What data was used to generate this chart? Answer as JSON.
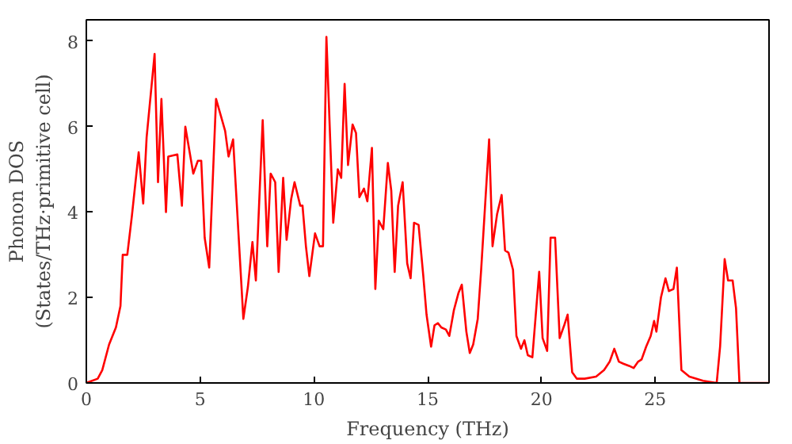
{
  "chart_data": {
    "type": "line",
    "xlabel": "Frequency (THz)",
    "ylabel": "Phonon DOS\n(States/THz·primitive cell)",
    "xlim": [
      0,
      30
    ],
    "ylim": [
      0,
      8.5
    ],
    "xticks": [
      0,
      5,
      10,
      15,
      20,
      25
    ],
    "yticks": [
      0,
      2,
      4,
      6,
      8
    ],
    "marker": "none",
    "line_style": "solid",
    "series": [
      {
        "color": "#ff0000",
        "x": [
          0,
          0.5,
          0.7,
          1.0,
          1.3,
          1.5,
          1.6,
          1.8,
          2.0,
          2.3,
          2.5,
          2.65,
          3.0,
          3.15,
          3.3,
          3.5,
          3.6,
          4.0,
          4.2,
          4.35,
          4.7,
          4.9,
          5.05,
          5.2,
          5.4,
          5.7,
          6.1,
          6.25,
          6.45,
          6.75,
          6.9,
          7.1,
          7.3,
          7.45,
          7.75,
          7.95,
          8.1,
          8.3,
          8.45,
          8.65,
          8.8,
          9.0,
          9.15,
          9.4,
          9.5,
          9.65,
          9.8,
          10.05,
          10.25,
          10.4,
          10.55,
          10.85,
          11.05,
          11.2,
          11.35,
          11.5,
          11.7,
          11.85,
          12.0,
          12.2,
          12.35,
          12.55,
          12.7,
          12.85,
          13.05,
          13.25,
          13.4,
          13.55,
          13.7,
          13.9,
          14.1,
          14.25,
          14.4,
          14.6,
          14.8,
          14.95,
          15.15,
          15.3,
          15.45,
          15.6,
          15.8,
          15.95,
          16.15,
          16.35,
          16.5,
          16.7,
          16.85,
          17.0,
          17.2,
          17.35,
          17.7,
          17.85,
          18.05,
          18.25,
          18.4,
          18.55,
          18.75,
          18.9,
          19.1,
          19.25,
          19.4,
          19.6,
          19.75,
          19.9,
          20.05,
          20.25,
          20.4,
          20.6,
          20.8,
          21.0,
          21.15,
          21.35,
          21.55,
          21.9,
          22.4,
          22.75,
          23.0,
          23.2,
          23.4,
          23.6,
          23.85,
          24.05,
          24.25,
          24.4,
          24.6,
          24.8,
          24.95,
          25.05,
          25.25,
          25.45,
          25.6,
          25.8,
          25.95,
          26.15,
          26.5,
          27.1,
          27.7,
          27.85,
          28.05,
          28.2,
          28.4,
          28.55,
          28.7,
          30
        ],
        "values": [
          0,
          0.1,
          0.3,
          0.9,
          1.3,
          1.8,
          3.0,
          3.0,
          3.9,
          5.4,
          4.2,
          5.75,
          7.7,
          4.7,
          6.65,
          4.0,
          5.3,
          5.35,
          4.15,
          6.0,
          4.9,
          5.2,
          5.2,
          3.4,
          2.7,
          6.65,
          5.9,
          5.3,
          5.7,
          2.9,
          1.5,
          2.25,
          3.3,
          2.4,
          6.15,
          3.2,
          4.9,
          4.7,
          2.6,
          4.8,
          3.35,
          4.3,
          4.7,
          4.15,
          4.15,
          3.2,
          2.5,
          3.5,
          3.2,
          3.2,
          8.1,
          3.75,
          5.0,
          4.8,
          7.0,
          5.1,
          6.05,
          5.85,
          4.35,
          4.55,
          4.25,
          5.5,
          2.2,
          3.8,
          3.6,
          5.15,
          4.5,
          2.6,
          4.15,
          4.7,
          2.8,
          2.45,
          3.75,
          3.7,
          2.55,
          1.6,
          0.85,
          1.35,
          1.4,
          1.3,
          1.25,
          1.1,
          1.7,
          2.1,
          2.3,
          1.2,
          0.7,
          0.9,
          1.5,
          2.65,
          5.7,
          3.2,
          3.95,
          4.4,
          3.1,
          3.05,
          2.65,
          1.1,
          0.8,
          1.0,
          0.65,
          0.6,
          1.6,
          2.6,
          1.05,
          0.75,
          3.4,
          3.4,
          1.05,
          1.35,
          1.6,
          0.25,
          0.1,
          0.1,
          0.15,
          0.3,
          0.5,
          0.8,
          0.5,
          0.45,
          0.4,
          0.35,
          0.5,
          0.55,
          0.85,
          1.1,
          1.45,
          1.2,
          2.0,
          2.45,
          2.15,
          2.2,
          2.7,
          0.3,
          0.15,
          0.05,
          0,
          0.85,
          2.9,
          2.4,
          2.4,
          1.75,
          0,
          0
        ]
      }
    ]
  }
}
